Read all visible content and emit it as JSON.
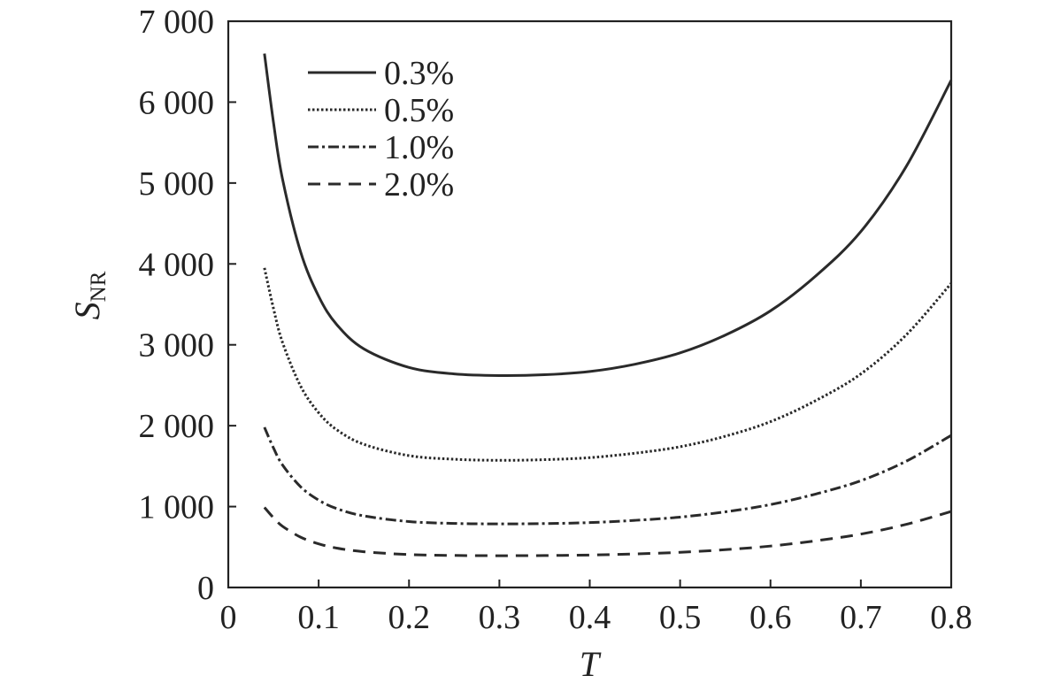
{
  "chart_data": {
    "type": "line",
    "title": "",
    "xlabel": "T",
    "ylabel": {
      "main": "S",
      "sub": "NR"
    },
    "xlim": [
      0,
      0.8
    ],
    "ylim": [
      0,
      7000
    ],
    "x_ticks": [
      {
        "value": 0,
        "label": "0"
      },
      {
        "value": 0.1,
        "label": "0.1"
      },
      {
        "value": 0.2,
        "label": "0.2"
      },
      {
        "value": 0.3,
        "label": "0.3"
      },
      {
        "value": 0.4,
        "label": "0.4"
      },
      {
        "value": 0.5,
        "label": "0.5"
      },
      {
        "value": 0.6,
        "label": "0.6"
      },
      {
        "value": 0.7,
        "label": "0.7"
      },
      {
        "value": 0.8,
        "label": "0.8"
      }
    ],
    "y_ticks": [
      {
        "value": 0,
        "label": "0"
      },
      {
        "value": 1000,
        "label": "1 000"
      },
      {
        "value": 2000,
        "label": "2 000"
      },
      {
        "value": 3000,
        "label": "3 000"
      },
      {
        "value": 4000,
        "label": "4 000"
      },
      {
        "value": 5000,
        "label": "5 000"
      },
      {
        "value": 6000,
        "label": "6 000"
      },
      {
        "value": 7000,
        "label": "7 000"
      }
    ],
    "grid": false,
    "legend_position": "top-left",
    "x": [
      0.04,
      0.05,
      0.06,
      0.08,
      0.1,
      0.12,
      0.15,
      0.2,
      0.25,
      0.3,
      0.35,
      0.4,
      0.45,
      0.5,
      0.55,
      0.6,
      0.65,
      0.7,
      0.75,
      0.8
    ],
    "series": [
      {
        "name": "0.3%",
        "style": "solid",
        "values": [
          6600,
          5750,
          5050,
          4150,
          3600,
          3250,
          2950,
          2720,
          2640,
          2620,
          2630,
          2670,
          2760,
          2900,
          3120,
          3420,
          3850,
          4400,
          5200,
          6270
        ]
      },
      {
        "name": "0.5%",
        "style": "dotted",
        "values": [
          3950,
          3450,
          3030,
          2490,
          2160,
          1950,
          1770,
          1630,
          1585,
          1572,
          1580,
          1605,
          1660,
          1740,
          1870,
          2050,
          2310,
          2640,
          3120,
          3760
        ]
      },
      {
        "name": "1.0%",
        "style": "dashdot",
        "values": [
          1980,
          1725,
          1515,
          1245,
          1080,
          975,
          885,
          815,
          792,
          786,
          790,
          802,
          830,
          870,
          935,
          1025,
          1155,
          1320,
          1560,
          1880
        ]
      },
      {
        "name": "2.0%",
        "style": "dashed",
        "values": [
          990,
          862,
          757,
          622,
          540,
          487,
          442,
          407,
          396,
          393,
          395,
          401,
          415,
          435,
          467,
          512,
          577,
          660,
          780,
          940
        ]
      }
    ]
  }
}
